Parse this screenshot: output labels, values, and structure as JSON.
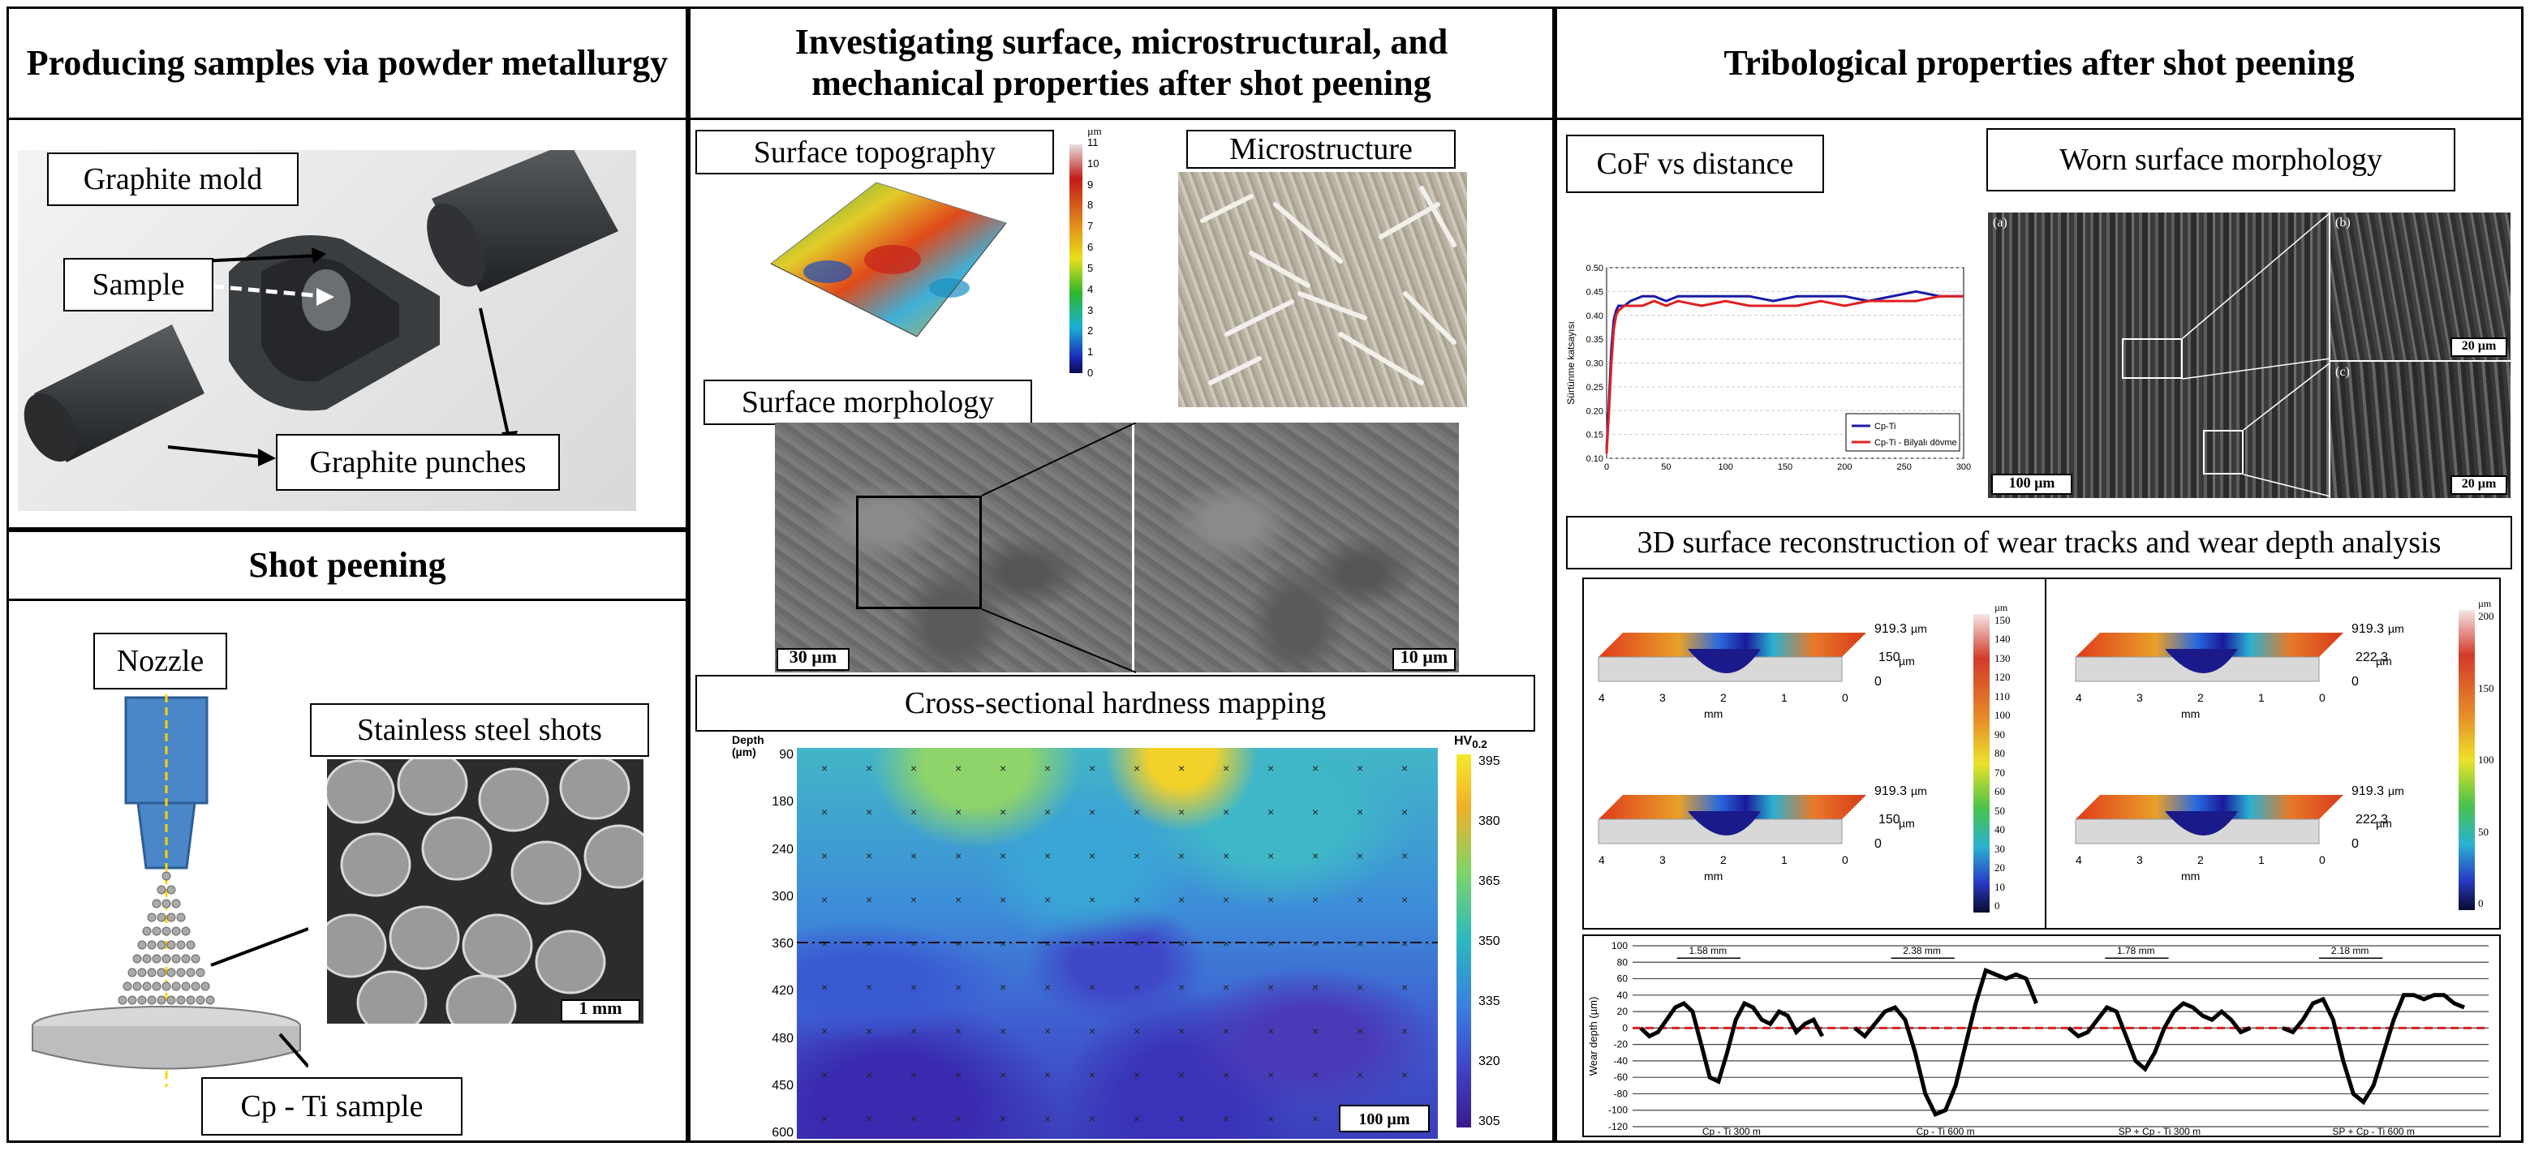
{
  "panels": {
    "powder": {
      "header": "Producing samples via powder metallurgy",
      "labels": {
        "mold": "Graphite mold",
        "sample": "Sample",
        "punches": "Graphite punches"
      }
    },
    "shot": {
      "header": "Shot peening",
      "labels": {
        "nozzle": "Nozzle",
        "shots": "Stainless steel shots",
        "cpti": "Cp - Ti sample"
      },
      "scale": "1 mm"
    },
    "investigate": {
      "header": "Investigating surface, microstructural, and mechanical properties after shot peening",
      "labels": {
        "topo": "Surface topography",
        "micro": "Microstructure",
        "morph": "Surface morphology",
        "hard": "Cross-sectional hardness mapping"
      },
      "topo_unit": "µm",
      "topo_scale": [
        "11",
        "10",
        "9",
        "8",
        "7",
        "6",
        "5",
        "4",
        "3",
        "2",
        "1",
        "0"
      ],
      "morph_scale_left": "30 µm",
      "morph_scale_right": "10 µm"
    },
    "tribo": {
      "header": "Tribological properties  after shot peening",
      "labels": {
        "cof": "CoF vs distance",
        "worn": "Worn surface morphology",
        "recon": "3D surface reconstruction of wear tracks and wear depth analysis"
      },
      "worn_scales": {
        "main": "100 µm",
        "b": "20 µm",
        "c": "20 µm"
      },
      "worn_tags": {
        "a": "(a)",
        "b": "(b)",
        "c": "(c)"
      }
    }
  },
  "hardness": {
    "depth_title": "Depth",
    "depth_unit": "(µm)",
    "depth_ticks": [
      "90",
      "180",
      "240",
      "300",
      "360",
      "420",
      "480",
      "450",
      "600"
    ],
    "hv_label": "HV",
    "hv_sub": "0.2",
    "hv_ticks": [
      "395",
      "380",
      "365",
      "350",
      "335",
      "320",
      "305"
    ],
    "scale": "100 µm"
  },
  "recon": {
    "left_scale": [
      "150",
      "140",
      "130",
      "120",
      "110",
      "100",
      "90",
      "80",
      "70",
      "60",
      "50",
      "40",
      "30",
      "20",
      "10",
      "0"
    ],
    "right_scale": [
      "200",
      "150",
      "100",
      "50",
      "0"
    ],
    "unit": "µm",
    "tracks": [
      {
        "len": "919.3",
        "ht": "150",
        "z": "0",
        "ticks": [
          "4",
          "3",
          "2",
          "1",
          "0"
        ],
        "xlab": "mm",
        "u1": "µm",
        "u2": "µm"
      },
      {
        "len": "919.3",
        "ht": "222.3",
        "z": "0",
        "ticks": [
          "4",
          "3",
          "2",
          "1",
          "0"
        ],
        "xlab": "mm",
        "u1": "µm",
        "u2": "µm"
      },
      {
        "len": "919.3",
        "ht": "150",
        "z": "0",
        "ticks": [
          "4",
          "3",
          "2",
          "1",
          "0"
        ],
        "xlab": "mm",
        "u1": "µm",
        "u2": "µm"
      },
      {
        "len": "919.3",
        "ht": "222.3",
        "z": "0",
        "ticks": [
          "4",
          "3",
          "2",
          "1",
          "0"
        ],
        "xlab": "mm",
        "u1": "µm",
        "u2": "µm"
      }
    ]
  },
  "chart_data": [
    {
      "type": "line",
      "title": "",
      "xlabel": "",
      "ylabel": "Sürtünme katsayısı",
      "xlim": [
        0,
        300
      ],
      "ylim": [
        0.1,
        0.5
      ],
      "x_ticks": [
        "0",
        "50",
        "100",
        "150",
        "200",
        "250",
        "300"
      ],
      "y_ticks": [
        "0.50",
        "0.45",
        "0.40",
        "0.35",
        "0.30",
        "0.25",
        "0.20",
        "0.15",
        "0.10"
      ],
      "series": [
        {
          "name": "Cp-Ti",
          "color": "#1a1aa8",
          "x": [
            0,
            2,
            4,
            6,
            8,
            10,
            15,
            20,
            30,
            40,
            50,
            60,
            80,
            100,
            120,
            140,
            160,
            180,
            200,
            220,
            240,
            260,
            280,
            300
          ],
          "y": [
            0.12,
            0.22,
            0.33,
            0.39,
            0.41,
            0.42,
            0.42,
            0.43,
            0.44,
            0.44,
            0.43,
            0.44,
            0.44,
            0.44,
            0.44,
            0.43,
            0.44,
            0.44,
            0.44,
            0.43,
            0.44,
            0.45,
            0.44,
            0.44
          ]
        },
        {
          "name": "Cp-Ti - Bilyalı dövme",
          "color": "#e02020",
          "x": [
            0,
            2,
            4,
            6,
            8,
            10,
            15,
            20,
            30,
            40,
            50,
            60,
            80,
            100,
            120,
            140,
            160,
            180,
            200,
            220,
            240,
            260,
            280,
            300
          ],
          "y": [
            0.11,
            0.2,
            0.3,
            0.37,
            0.4,
            0.41,
            0.42,
            0.42,
            0.42,
            0.43,
            0.42,
            0.43,
            0.42,
            0.43,
            0.42,
            0.42,
            0.42,
            0.43,
            0.42,
            0.43,
            0.43,
            0.43,
            0.44,
            0.44
          ]
        }
      ]
    },
    {
      "type": "line",
      "title": "",
      "xlabel": "",
      "ylabel": "Wear depth (µm)",
      "ylim": [
        -120,
        100
      ],
      "y_ticks": [
        "100",
        "80",
        "60",
        "40",
        "20",
        "0",
        "-20",
        "-40",
        "-60",
        "-80",
        "-100",
        "-120"
      ],
      "series": [
        {
          "name": "Cp - Ti 300 m",
          "width_label": "1.58 mm",
          "y": [
            0,
            -10,
            -5,
            10,
            25,
            30,
            20,
            -20,
            -60,
            -65,
            -30,
            10,
            30,
            25,
            10,
            5,
            20,
            15,
            -5,
            5,
            10,
            -10
          ]
        },
        {
          "name": "Cp - Ti 600 m",
          "width_label": "2.38 mm",
          "y": [
            0,
            -10,
            5,
            20,
            25,
            10,
            -30,
            -80,
            -105,
            -100,
            -70,
            -20,
            30,
            70,
            65,
            60,
            65,
            60,
            30
          ]
        },
        {
          "name": "SP + Cp - Ti 300 m",
          "width_label": "1.78 mm",
          "y": [
            0,
            -10,
            -5,
            10,
            25,
            20,
            -10,
            -40,
            -50,
            -30,
            0,
            20,
            30,
            25,
            15,
            10,
            20,
            10,
            -5,
            0
          ]
        },
        {
          "name": "SP + Cp - Ti 600 m",
          "width_label": "2.18 mm",
          "y": [
            0,
            -5,
            10,
            30,
            35,
            10,
            -40,
            -80,
            -90,
            -70,
            -30,
            10,
            40,
            40,
            35,
            40,
            40,
            30,
            25
          ]
        }
      ]
    }
  ]
}
